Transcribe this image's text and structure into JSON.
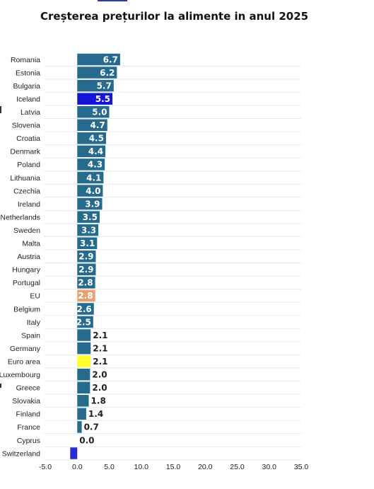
{
  "title": "Creșterea prețurilor la alimente in anul 2025",
  "colors": {
    "default_bar": "#266a8e",
    "highlight_iceland": "#1515d8",
    "highlight_eu": "#e9a06f",
    "highlight_euro_area": "#ffff2e",
    "highlight_switzerland": "#2a2ad0",
    "gridline": "#e9e9e9"
  },
  "chart_data": {
    "type": "bar",
    "orientation": "horizontal",
    "title": "Creșterea prețurilor la alimente in anul 2025",
    "xlabel": "",
    "ylabel": "",
    "xlim": [
      -5,
      35
    ],
    "x_ticks": [
      "-5.0",
      "0.0",
      "5.0",
      "10.0",
      "15.0",
      "20.0",
      "25.0",
      "30.0",
      "35.0"
    ],
    "grid": true,
    "categories": [
      "Romania",
      "Estonia",
      "Bulgaria",
      "Iceland",
      "Latvia",
      "Slovenia",
      "Croatia",
      "Denmark",
      "Poland",
      "Lithuania",
      "Czechia",
      "Ireland",
      "Netherlands",
      "Sweden",
      "Malta",
      "Austria",
      "Hungary",
      "Portugal",
      "EU",
      "Belgium",
      "Italy",
      "Spain",
      "Germany",
      "Euro area",
      "Luxembourg",
      "Greece",
      "Slovakia",
      "Finland",
      "France",
      "Cyprus",
      "Switzerland"
    ],
    "values": [
      6.7,
      6.2,
      5.7,
      5.5,
      5.0,
      4.7,
      4.5,
      4.4,
      4.3,
      4.1,
      4.0,
      3.9,
      3.5,
      3.3,
      3.1,
      2.9,
      2.9,
      2.8,
      2.8,
      2.6,
      2.5,
      2.1,
      2.1,
      2.1,
      2.0,
      2.0,
      1.8,
      1.4,
      0.7,
      0.0,
      -1.1
    ],
    "value_labels": [
      "6.7",
      "6.2",
      "5.7",
      "5.5",
      "5.0",
      "4.7",
      "4.5",
      "4.4",
      "4.3",
      "4.1",
      "4.0",
      "3.9",
      "3.5",
      "3.3",
      "3.1",
      "2.9",
      "2.9",
      "2.8",
      "2.8",
      "2.6",
      "2.5",
      "2.1",
      "2.1",
      "2.1",
      "2.0",
      "2.0",
      "1.8",
      "1.4",
      "0.7",
      "0.0",
      ""
    ],
    "highlights": {
      "Iceland": "highlight_iceland",
      "EU": "highlight_eu",
      "Euro area": "highlight_euro_area",
      "Switzerland": "highlight_switzerland"
    }
  }
}
